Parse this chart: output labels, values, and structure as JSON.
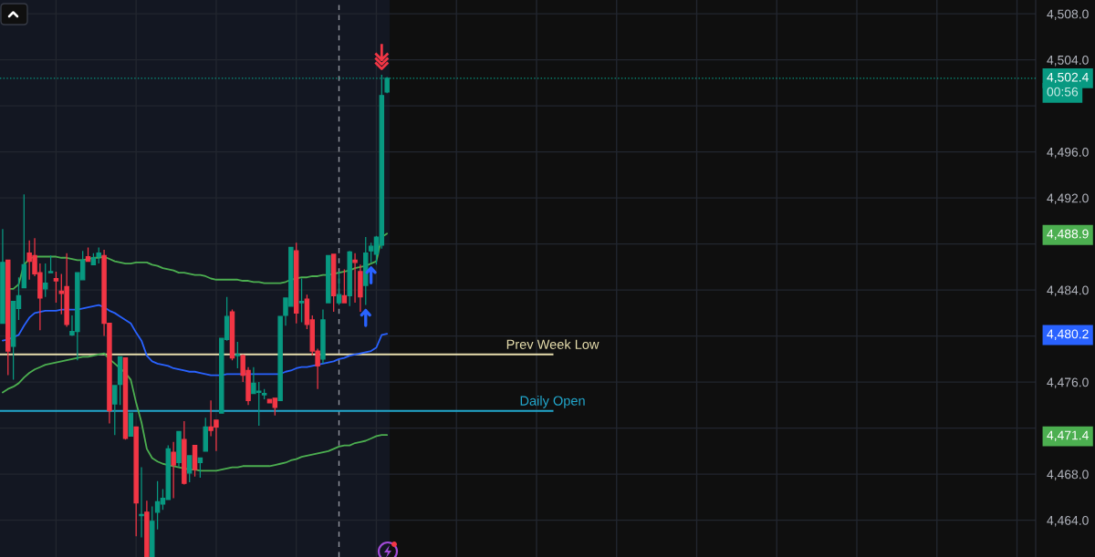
{
  "chart_data": {
    "type": "candlestick",
    "categories": [
      null,
      null,
      null,
      null,
      null,
      null,
      null,
      null,
      null,
      null,
      null,
      null,
      null,
      null,
      null,
      null,
      null,
      null,
      null,
      null,
      null,
      null,
      null,
      null,
      null,
      null,
      null,
      null,
      null,
      null,
      null,
      null,
      null,
      null,
      null,
      null,
      null,
      null,
      null,
      null,
      null,
      null,
      null,
      null,
      null,
      null,
      null,
      null,
      null,
      null,
      null,
      null,
      null,
      null,
      null,
      null,
      null,
      null,
      null,
      null,
      null,
      null,
      null,
      null,
      null,
      null,
      null,
      null,
      null,
      null,
      null,
      null,
      null,
      null,
      null,
      null,
      null,
      null,
      null,
      null,
      null,
      null,
      null,
      null,
      null,
      null,
      null,
      null,
      null,
      null,
      null,
      null,
      null,
      null,
      null,
      null,
      null,
      null,
      null,
      null,
      null,
      null,
      null,
      null,
      null,
      null,
      null,
      null,
      null,
      null,
      null,
      null,
      null,
      null,
      null,
      null,
      null,
      null,
      null,
      null,
      null,
      null,
      null,
      null,
      null,
      null,
      null,
      null,
      null,
      null,
      null,
      null,
      null,
      null,
      null,
      null,
      null,
      null,
      null,
      null,
      null,
      null,
      null,
      null,
      null,
      null,
      null,
      null,
      null,
      null,
      null,
      null,
      null,
      null,
      null,
      null,
      null,
      null,
      null,
      null,
      null,
      null,
      null,
      null,
      null,
      null,
      null,
      null,
      null,
      null,
      null,
      null,
      null,
      null,
      null,
      null,
      null,
      null,
      null,
      null,
      null,
      null,
      null,
      null,
      null,
      null,
      null,
      null,
      null,
      null,
      null,
      null,
      null,
      null
    ],
    "ohlc": [
      [
        4481.1,
        4489.3,
        4481.1,
        4486.4
      ],
      [
        4486.6,
        4486.6,
        4476.6,
        4478.7
      ],
      [
        4479.1,
        4483.0,
        4476.2,
        4483.0
      ],
      [
        4482.4,
        4485.1,
        4481.4,
        4483.5
      ],
      [
        4484.2,
        4492.3,
        4484.2,
        4486.2
      ],
      [
        4487.2,
        4488.3,
        4484.9,
        4486.5
      ],
      [
        4487.0,
        4488.5,
        4485.2,
        4485.4
      ],
      [
        4485.5,
        4486.3,
        4480.5,
        4483.3
      ],
      [
        4484.1,
        4486.3,
        4483.4,
        4484.6
      ],
      [
        4485.5,
        4487.0,
        4485.5,
        4485.6
      ],
      [
        4485.0,
        4485.6,
        4482.9,
        4484.8
      ],
      [
        4483.9,
        4485.4,
        4481.9,
        4483.7
      ],
      [
        4484.3,
        4487.2,
        4480.8,
        4481.0
      ],
      [
        4480.1,
        4481.8,
        4480.0,
        4480.4
      ],
      [
        4480.4,
        4485.5,
        4477.9,
        4485.5
      ],
      [
        4484.9,
        4487.4,
        4484.9,
        4486.6
      ],
      [
        4486.9,
        4487.7,
        4486.5,
        4486.5
      ],
      [
        4486.2,
        4487.2,
        4486.2,
        4486.8
      ],
      [
        4486.9,
        4487.7,
        4486.3,
        4487.2
      ],
      [
        4487.0,
        4487.5,
        4480.0,
        4481.1
      ],
      [
        4481.1,
        4481.1,
        4472.4,
        4473.5
      ],
      [
        4474.1,
        4475.7,
        4471.4,
        4475.7
      ],
      [
        4475.8,
        4478.2,
        4474.0,
        4478.2
      ],
      [
        4478.1,
        4478.1,
        4471.0,
        4471.1
      ],
      [
        4471.3,
        4473.3,
        4471.3,
        4473.3
      ],
      [
        4472.1,
        4472.1,
        4462.6,
        4465.5
      ],
      [
        4464.4,
        4468.6,
        4462.5,
        4464.5
      ],
      [
        4464.7,
        4465.7,
        4460.8,
        4460.8
      ],
      [
        4460.8,
        4465.2,
        4460.8,
        4463.9
      ],
      [
        4464.7,
        4467.4,
        4463.2,
        4465.6
      ],
      [
        4465.4,
        4466.7,
        4464.9,
        4465.9
      ],
      [
        4465.8,
        4470.5,
        4465.8,
        4470.2
      ],
      [
        4469.9,
        4470.8,
        4465.9,
        4468.8
      ],
      [
        4469.0,
        4471.7,
        4468.6,
        4471.7
      ],
      [
        4471.0,
        4472.6,
        4467.1,
        4467.2
      ],
      [
        4468.1,
        4469.6,
        4467.3,
        4469.6
      ],
      [
        4470.5,
        4470.5,
        4467.8,
        4468.4
      ],
      [
        4469.0,
        4469.4,
        4467.7,
        4469.4
      ],
      [
        4470.0,
        4472.9,
        4470.0,
        4472.1
      ],
      [
        4472.1,
        4474.4,
        4471.3,
        4471.8
      ],
      [
        4472.7,
        4472.7,
        4470.0,
        4472.1
      ],
      [
        4473.3,
        4479.8,
        4473.3,
        4479.8
      ],
      [
        4479.7,
        4483.4,
        4479.6,
        4481.7
      ],
      [
        4482.1,
        4482.3,
        4477.9,
        4478.1
      ],
      [
        4478.3,
        4479.5,
        4477.2,
        4478.4
      ],
      [
        4478.3,
        4478.4,
        4476.0,
        4476.6
      ],
      [
        4477.0,
        4477.3,
        4474.0,
        4474.4
      ],
      [
        4475.0,
        4477.3,
        4475.0,
        4475.9
      ],
      [
        4475.1,
        4476.0,
        4472.2,
        4475.2
      ],
      [
        4474.9,
        4475.4,
        4474.5,
        4475.0
      ],
      [
        4474.5,
        4474.5,
        4474.2,
        4474.2
      ],
      [
        4474.6,
        4474.6,
        4473.1,
        4473.8
      ],
      [
        4474.4,
        4481.7,
        4474.4,
        4481.7
      ],
      [
        4481.8,
        4483.3,
        4480.9,
        4483.3
      ],
      [
        4482.6,
        4487.7,
        4482.6,
        4487.7
      ],
      [
        4487.4,
        4488.1,
        4481.1,
        4482.0
      ],
      [
        4482.9,
        4485.0,
        4481.2,
        4483.0
      ],
      [
        4483.2,
        4483.6,
        4480.6,
        4481.0
      ],
      [
        4481.4,
        4481.8,
        4478.3,
        4478.7
      ],
      [
        4478.7,
        4478.9,
        4475.4,
        4477.4
      ],
      [
        4478.0,
        4482.3,
        4477.6,
        4481.4
      ],
      [
        4482.9,
        4487.0,
        4482.9,
        4487.0
      ],
      [
        4487.1,
        4487.1,
        4482.1,
        4483.5
      ],
      [
        4482.9,
        4485.6,
        4482.7,
        4483.6
      ],
      [
        4483.5,
        4485.8,
        4482.9,
        4482.9
      ],
      [
        4483.5,
        4487.4,
        4482.6,
        4487.3
      ],
      [
        4486.6,
        4487.2,
        4482.9,
        4486.4
      ],
      [
        4485.6,
        4486.2,
        4482.1,
        4483.4
      ],
      [
        4484.4,
        4488.6,
        4482.7,
        4487.2
      ],
      [
        4487.4,
        4488.1,
        4486.4,
        4487.8
      ],
      [
        4487.1,
        4488.7,
        4486.2,
        4488.6
      ],
      [
        4487.9,
        4502.7,
        4487.6,
        4500.9
      ],
      [
        4501.2,
        4502.5,
        4501.1,
        4502.4
      ],
      null,
      null,
      null,
      null,
      null,
      null,
      null,
      null,
      null,
      null,
      null,
      null,
      null,
      null,
      null,
      null,
      null,
      null,
      null,
      null,
      null,
      null,
      null,
      null,
      null,
      null,
      null,
      null,
      null,
      null,
      null,
      null,
      null,
      null,
      null,
      null,
      null,
      null,
      null,
      null,
      null,
      null,
      null,
      null,
      null,
      null,
      null,
      null,
      null,
      null,
      null,
      null,
      null,
      null,
      null,
      null,
      null,
      null,
      null,
      null,
      null,
      null,
      null,
      null,
      null,
      null,
      null,
      null,
      null,
      null,
      null,
      null,
      null,
      null,
      null,
      null,
      null,
      null,
      null,
      null,
      null,
      null,
      null,
      null,
      null,
      null,
      null,
      null,
      null,
      null,
      null,
      null,
      null,
      null,
      null,
      null,
      null,
      null,
      null,
      null,
      null,
      null,
      null,
      null,
      null,
      null,
      null,
      null,
      null,
      null,
      null,
      null,
      null,
      null,
      null,
      null,
      null,
      null,
      null,
      null,
      null
    ],
    "colors": [
      "#089981",
      "#f23645",
      "#089981",
      "#089981",
      "#089981",
      "#f23645",
      "#f23645",
      "#f23645",
      "#089981",
      "#089981",
      "#f23645",
      "#f23645",
      "#f23645",
      "#089981",
      "#089981",
      "#089981",
      "#f23645",
      "#089981",
      "#089981",
      "#f23645",
      "#f23645",
      "#089981",
      "#089981",
      "#f23645",
      "#089981",
      "#f23645",
      "#089981",
      "#f23645",
      "#089981",
      "#089981",
      "#089981",
      "#089981",
      "#f23645",
      "#089981",
      "#f23645",
      "#089981",
      "#f23645",
      "#089981",
      "#089981",
      "#f23645",
      "#f23645",
      "#089981",
      "#089981",
      "#f23645",
      "#089981",
      "#f23645",
      "#f23645",
      "#089981",
      "#089981",
      "#089981",
      "#f23645",
      "#f23645",
      "#089981",
      "#089981",
      "#089981",
      "#f23645",
      "#089981",
      "#f23645",
      "#f23645",
      "#f23645",
      "#089981",
      "#089981",
      "#f23645",
      "#089981",
      "#f23645",
      "#089981",
      "#f23645",
      "#f23645",
      "#089981",
      "#089981",
      "#089981",
      "#089981",
      "#089981",
      null,
      null,
      null,
      null,
      null,
      null,
      null,
      null,
      null,
      null,
      null,
      null,
      null,
      null,
      null,
      null,
      null,
      null,
      null,
      null,
      null,
      null,
      null,
      null,
      null,
      null,
      null,
      null,
      null,
      null,
      null,
      null,
      null,
      null,
      null,
      null,
      null,
      null,
      null,
      null,
      null,
      null,
      null,
      null,
      null,
      null,
      null,
      null,
      null,
      null,
      null,
      null,
      null,
      null,
      null,
      null,
      null,
      null,
      null,
      null,
      null,
      null,
      null,
      null,
      null,
      null,
      null,
      null,
      null,
      null,
      null,
      null,
      null,
      null,
      null,
      null,
      null,
      null,
      null,
      null,
      null,
      null,
      null,
      null,
      null,
      null,
      null,
      null,
      null,
      null,
      null,
      null,
      null,
      null,
      null,
      null,
      null,
      null,
      null,
      null,
      null,
      null,
      null,
      null,
      null,
      null,
      null,
      null,
      null,
      null,
      null,
      null,
      null,
      null,
      null,
      null,
      null,
      null,
      null,
      null,
      null
    ],
    "value_labels": [
      null,
      null,
      null,
      null,
      null,
      null,
      null,
      null,
      null,
      null,
      null,
      null,
      null,
      null,
      null,
      null,
      null,
      null,
      null,
      null,
      null,
      null,
      null,
      null,
      null,
      null,
      null,
      null,
      null,
      null,
      null,
      null,
      null,
      null,
      null,
      null,
      null,
      null,
      null,
      null,
      null,
      null,
      null,
      null,
      null,
      null,
      null,
      null,
      null,
      null,
      null,
      null,
      null,
      null,
      null,
      null,
      null,
      null,
      null,
      null,
      null,
      null,
      null,
      null,
      null,
      null,
      null,
      null,
      null,
      null,
      null,
      null,
      "4,502.4",
      null,
      null,
      null,
      null,
      null,
      null,
      null,
      null,
      null,
      null,
      null,
      null,
      null,
      null,
      null,
      null,
      null,
      null,
      null,
      null,
      null,
      null,
      null,
      null,
      null,
      null,
      null,
      null,
      null,
      null,
      null,
      null,
      null,
      null,
      null,
      null,
      null,
      null,
      null,
      null,
      null,
      null,
      null,
      null,
      null,
      null,
      null,
      null,
      null,
      null,
      null,
      null,
      null,
      null,
      null,
      null,
      null,
      null,
      null,
      null,
      null,
      null,
      null,
      null,
      null,
      null,
      null,
      null,
      null,
      null,
      null,
      null,
      null,
      null,
      null,
      null,
      null,
      null,
      null,
      null,
      null,
      null,
      null,
      null,
      null,
      null,
      null,
      null,
      null,
      null,
      null,
      null,
      null,
      null,
      null,
      null,
      null,
      null,
      null,
      null,
      null,
      null,
      null,
      null,
      null,
      null,
      null,
      null,
      null,
      null,
      null,
      null,
      null,
      null,
      null,
      null,
      null,
      null,
      null,
      null,
      null
    ],
    "series": [
      {
        "type": "line",
        "color": "#4caf50",
        "values": [
          null,
          4484.1,
          4484.1,
          4484.5,
          4486.2,
          4486.7,
          4486.9,
          4486.9,
          4486.9,
          4486.9,
          4486.9,
          4486.8,
          4486.8,
          4486.7,
          4486.6,
          4486.6,
          4486.7,
          4486.8,
          4486.8,
          4486.9,
          4486.7,
          4486.5,
          4486.4,
          4486.3,
          4486.3,
          4486.4,
          4486.4,
          4486.4,
          4486.2,
          4486.1,
          4485.9,
          4485.8,
          4485.7,
          4485.5,
          4485.5,
          4485.4,
          4485.3,
          4485.3,
          4485.2,
          4485.0,
          4484.9,
          4484.9,
          4484.9,
          4484.9,
          4484.9,
          4484.8,
          4484.8,
          4484.7,
          4484.7,
          4484.6,
          4484.6,
          4484.6,
          4484.6,
          4484.7,
          4484.9,
          4485.0,
          4485.1,
          4485.1,
          4485.2,
          4485.2,
          4485.3,
          4485.3,
          4485.4,
          4485.5,
          4485.6,
          4485.7,
          4485.9,
          4486.0,
          4486.1,
          4486.3,
          4486.5,
          4488.6,
          4488.9,
          null,
          null,
          null,
          null,
          null,
          null,
          null,
          null,
          null,
          null,
          null,
          null,
          null,
          null,
          null,
          null,
          null,
          null,
          null,
          null,
          null,
          null,
          null,
          null,
          null,
          null,
          null,
          null,
          null,
          null,
          null,
          null,
          null,
          null,
          null,
          null,
          null,
          null,
          null,
          null,
          null,
          null,
          null,
          null,
          null,
          null,
          null,
          null,
          null,
          null,
          null,
          null,
          null,
          null,
          null,
          null,
          null,
          null,
          null,
          null,
          null,
          null,
          null,
          null,
          null,
          null,
          null,
          null,
          null,
          null,
          null,
          null,
          null,
          null,
          null,
          null,
          null,
          null,
          null,
          null,
          null,
          null,
          null,
          null,
          null,
          null,
          null,
          null,
          null,
          null,
          null,
          null,
          null,
          null,
          null,
          null,
          null,
          null,
          null,
          null,
          null,
          null,
          null,
          null,
          null,
          null,
          null,
          null,
          null,
          null,
          null,
          null,
          null,
          null,
          null,
          null,
          null,
          null,
          null,
          null,
          null
        ]
      },
      {
        "type": "line",
        "color": "#2962ff",
        "values": [
          4479.6,
          4479.7,
          4479.9,
          4480.1,
          4480.9,
          4481.6,
          4482.0,
          4482.1,
          4482.2,
          4482.2,
          4482.2,
          4482.3,
          4482.3,
          4482.3,
          4482.3,
          4482.4,
          4482.5,
          4482.6,
          4482.7,
          4482.5,
          4482.2,
          4482.0,
          4481.7,
          4481.4,
          4481.1,
          4480.3,
          4479.6,
          4478.3,
          4477.8,
          4477.6,
          4477.5,
          4477.4,
          4477.2,
          4477.1,
          4477.0,
          4476.9,
          4476.9,
          4476.8,
          4476.7,
          4476.6,
          4476.6,
          4476.6,
          4476.7,
          4476.7,
          4476.7,
          4476.7,
          4476.7,
          4476.7,
          4476.7,
          4476.7,
          4476.7,
          4476.7,
          4476.7,
          4476.9,
          4477.0,
          4477.2,
          4477.3,
          4477.3,
          4477.4,
          4477.5,
          4477.6,
          4477.7,
          4477.8,
          4478.0,
          4478.1,
          4478.3,
          4478.4,
          4478.5,
          4478.6,
          4478.7,
          4479.0,
          4480.1,
          4480.2,
          null,
          null,
          null,
          null,
          null,
          null,
          null,
          null,
          null,
          null,
          null,
          null,
          null,
          null,
          null,
          null,
          null,
          null,
          null,
          null,
          null,
          null,
          null,
          null,
          null,
          null,
          null,
          null,
          null,
          null,
          null,
          null,
          null,
          null,
          null,
          null,
          null,
          null,
          null,
          null,
          null,
          null,
          null,
          null,
          null,
          null,
          null,
          null,
          null,
          null,
          null,
          null,
          null,
          null,
          null,
          null,
          null,
          null,
          null,
          null,
          null,
          null,
          null,
          null,
          null,
          null,
          null,
          null,
          null,
          null,
          null,
          null,
          null,
          null,
          null,
          null,
          null,
          null,
          null,
          null,
          null,
          null,
          null,
          null,
          null,
          null,
          null,
          null,
          null,
          null,
          null,
          null,
          null,
          null,
          null,
          null,
          null,
          null,
          null,
          null,
          null,
          null,
          null,
          null,
          null,
          null,
          null,
          null,
          null,
          null,
          null,
          null,
          null,
          null,
          null,
          null,
          null,
          null,
          null,
          null,
          null
        ]
      },
      {
        "type": "line",
        "color": "#4caf50",
        "values": [
          4475.1,
          4475.4,
          4475.6,
          4475.9,
          4476.4,
          4476.8,
          4477.1,
          4477.3,
          4477.5,
          4477.6,
          4477.7,
          4477.8,
          4477.9,
          4478.0,
          4478.1,
          4478.2,
          4478.2,
          4478.3,
          4478.4,
          4478.5,
          4478.0,
          4477.6,
          4477.2,
          4476.8,
          4476.2,
          4474.2,
          4472.5,
          4470.2,
          4469.4,
          4469.1,
          4468.9,
          4468.8,
          4468.7,
          4468.6,
          4468.5,
          4468.4,
          4468.4,
          4468.3,
          4468.3,
          4468.3,
          4468.3,
          4468.4,
          4468.5,
          4468.6,
          4468.6,
          4468.7,
          4468.7,
          4468.7,
          4468.7,
          4468.7,
          4468.7,
          4468.8,
          4468.9,
          4469.0,
          4469.2,
          4469.3,
          4469.5,
          4469.6,
          4469.7,
          4469.8,
          4469.9,
          4470.0,
          4470.2,
          4470.4,
          4470.5,
          4470.5,
          4470.7,
          4470.8,
          4470.9,
          4471.1,
          4471.3,
          4471.4,
          4471.4,
          null,
          null,
          null,
          null,
          null,
          null,
          null,
          null,
          null,
          null,
          null,
          null,
          null,
          null,
          null,
          null,
          null,
          null,
          null,
          null,
          null,
          null,
          null,
          null,
          null,
          null,
          null,
          null,
          null,
          null,
          null,
          null,
          null,
          null,
          null,
          null,
          null,
          null,
          null,
          null,
          null,
          null,
          null,
          null,
          null,
          null,
          null,
          null,
          null,
          null,
          null,
          null,
          null,
          null,
          null,
          null,
          null,
          null,
          null,
          null,
          null,
          null,
          null,
          null,
          null,
          null,
          null,
          null,
          null,
          null,
          null,
          null,
          null,
          null,
          null,
          null,
          null,
          null,
          null,
          null,
          null,
          null,
          null,
          null,
          null,
          null,
          null,
          null,
          null,
          null,
          null,
          null,
          null,
          null,
          null,
          null,
          null,
          null,
          null,
          null,
          null,
          null,
          null,
          null,
          null,
          null,
          null,
          null,
          null,
          null,
          null,
          null,
          null,
          null,
          null,
          null,
          null,
          null,
          null,
          null,
          null
        ]
      }
    ],
    "ylim": [
      4460.8,
      4509.2
    ],
    "yticks": [
      {
        "value": 4464,
        "label": "4,464.0"
      },
      {
        "value": 4468,
        "label": "4,468.0"
      },
      {
        "value": 4471.4,
        "label": "4,471.4"
      },
      {
        "value": 4472,
        "label": null
      },
      {
        "value": 4476,
        "label": "4,476.0"
      },
      {
        "value": 4480,
        "label": null
      },
      {
        "value": 4480.2,
        "label": "4,480.2"
      },
      {
        "value": 4484,
        "label": "4,484.0"
      },
      {
        "value": 4488,
        "label": null
      },
      {
        "value": 4488.9,
        "label": "4,488.9"
      },
      {
        "value": 4492,
        "label": "4,492.0"
      },
      {
        "value": 4496,
        "label": "4,496.0"
      },
      {
        "value": 4500,
        "label": null
      },
      {
        "value": 4504,
        "label": "4,504.0"
      },
      {
        "value": 4508,
        "label": "4,508.0"
      }
    ],
    "tick_labels": "y",
    "grid": true,
    "ref_lines": [
      {
        "axis": "y",
        "value": 4502.4,
        "label": null,
        "color": "#089981",
        "line_style": "dotted"
      },
      {
        "axis": "y",
        "value": 4478.4,
        "label": "Prev Week Low",
        "color": "#e8dfae"
      },
      {
        "axis": "y",
        "value": 4473.5,
        "label": "Daily Open",
        "color": "#22a7cc"
      }
    ],
    "annotations": [
      "00:56"
    ]
  }
}
